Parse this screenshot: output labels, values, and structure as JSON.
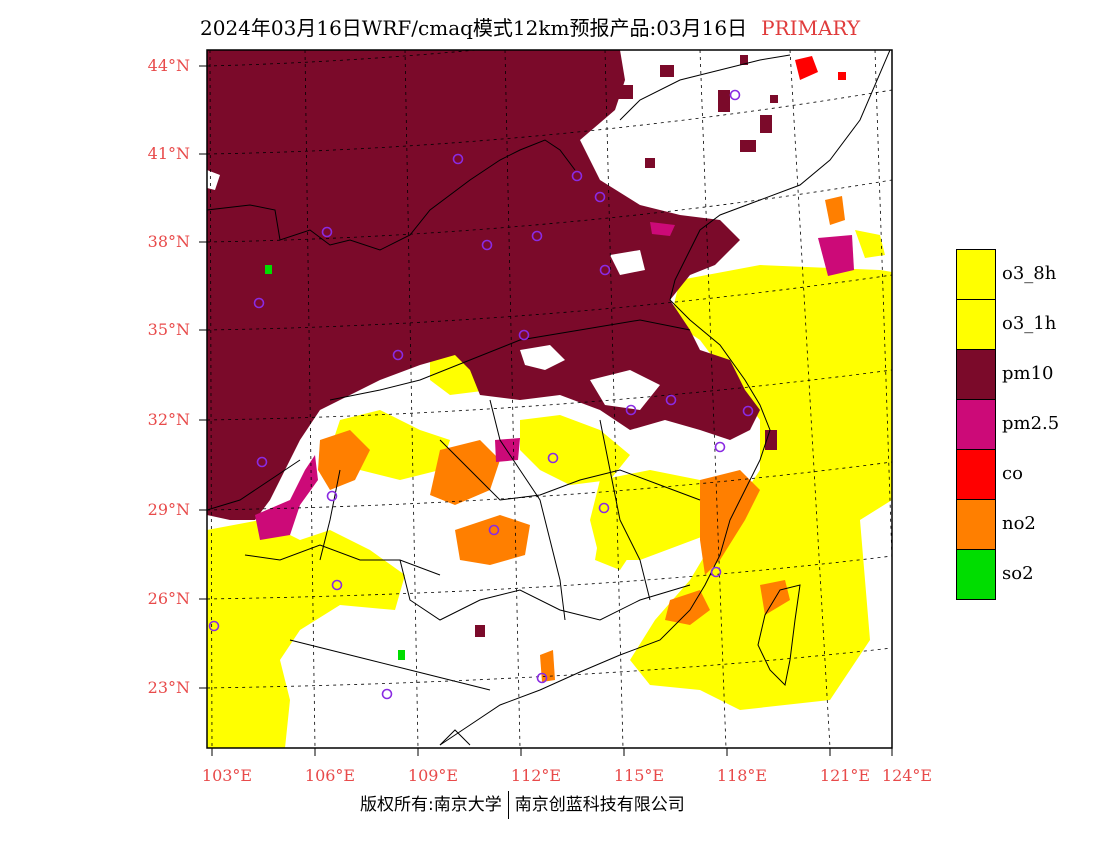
{
  "header": {
    "title": "2024年03月16日WRF/cmaq模式12km预报产品:03月16日",
    "tag": "PRIMARY"
  },
  "axes": {
    "lat_labels": [
      "44°N",
      "41°N",
      "38°N",
      "35°N",
      "32°N",
      "29°N",
      "26°N",
      "23°N"
    ],
    "lon_labels": [
      "103°E",
      "106°E",
      "109°E",
      "112°E",
      "115°E",
      "118°E",
      "121°E",
      "124°E"
    ]
  },
  "legend": {
    "items": [
      {
        "label": "o3_8h",
        "color": "#ffff00"
      },
      {
        "label": "o3_1h",
        "color": "#ffff00"
      },
      {
        "label": "pm10",
        "color": "#7b0a2a"
      },
      {
        "label": "pm2.5",
        "color": "#cc0a78"
      },
      {
        "label": "co",
        "color": "#ff0000"
      },
      {
        "label": "no2",
        "color": "#ff7f00"
      },
      {
        "label": "so2",
        "color": "#00dd00"
      }
    ]
  },
  "footer": {
    "left": "版权所有:南京大学",
    "right": "南京创蓝科技有限公司"
  }
}
